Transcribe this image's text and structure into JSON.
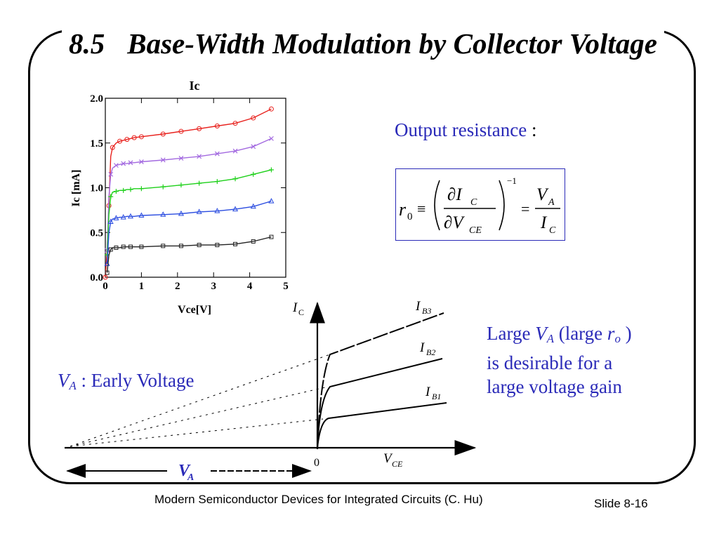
{
  "slide": {
    "number": "8.5",
    "title": "Base-Width Modulation by Collector Voltage",
    "footer": "Modern Semiconductor Devices for Integrated Circuits (C. Hu)",
    "slide_no": "Slide 8-16"
  },
  "output_resistance": {
    "label": "Output resistance",
    "colon": ":",
    "formula": {
      "r": "r",
      "r_sub": "0",
      "equiv": "≡",
      "num": "∂I",
      "num_sub": "C",
      "den": "∂V",
      "den_sub": "CE",
      "exp": "−1",
      "eq": "=",
      "va": "V",
      "va_sub": "A",
      "ic": "I",
      "ic_sub": "C"
    }
  },
  "early": {
    "va": "V",
    "va_sub": "A",
    "text": " : Early Voltage"
  },
  "statement": {
    "l1a": "Large ",
    "va": "V",
    "va_sub": "A",
    "l1b": " (large ",
    "ro": "r",
    "ro_sub": "o",
    "l1c": " )",
    "l2": "is desirable for a",
    "l3": "large voltage gain"
  },
  "sketch": {
    "ic": "I",
    "ic_sub": "C",
    "vce": "V",
    "vce_sub": "CE",
    "zero": "0",
    "va": "V",
    "va_sub": "A",
    "ib": [
      "I",
      "I",
      "I"
    ],
    "ib_sub": [
      "B3",
      "B2",
      "B1"
    ]
  },
  "chart_data": {
    "type": "scatter",
    "title": "Ic",
    "xlabel": "Vce[V]",
    "ylabel": "Ic [mA]",
    "xlim": [
      0,
      5
    ],
    "ylim": [
      0,
      2.0
    ],
    "x_ticks": [
      "0",
      "1",
      "2",
      "3",
      "4",
      "5"
    ],
    "y_ticks": [
      "0.0",
      "0.5",
      "1.0",
      "1.5",
      "2.0"
    ],
    "grid": false,
    "series": [
      {
        "color": "#e8201c",
        "marker": "circle",
        "x": [
          0,
          0.05,
          0.1,
          0.15,
          0.2,
          0.3,
          0.4,
          0.5,
          0.6,
          0.7,
          0.8,
          1.0,
          1.6,
          2.1,
          2.6,
          3.1,
          3.6,
          4.1,
          4.6
        ],
        "y": [
          0,
          0.3,
          0.8,
          1.35,
          1.45,
          1.5,
          1.52,
          1.53,
          1.54,
          1.55,
          1.56,
          1.57,
          1.6,
          1.63,
          1.66,
          1.69,
          1.72,
          1.78,
          1.88
        ]
      },
      {
        "color": "#a36ae0",
        "marker": "x",
        "x": [
          0.05,
          0.1,
          0.15,
          0.2,
          0.3,
          0.4,
          0.5,
          0.6,
          0.7,
          0.8,
          1.0,
          1.6,
          2.1,
          2.6,
          3.1,
          3.6,
          4.1,
          4.6
        ],
        "y": [
          0.3,
          0.9,
          1.15,
          1.22,
          1.25,
          1.26,
          1.27,
          1.27,
          1.28,
          1.28,
          1.29,
          1.31,
          1.33,
          1.35,
          1.38,
          1.41,
          1.46,
          1.55
        ]
      },
      {
        "color": "#1ed01a",
        "marker": "plus",
        "x": [
          0.05,
          0.1,
          0.15,
          0.2,
          0.3,
          0.4,
          0.5,
          0.6,
          0.7,
          0.8,
          1.0,
          1.6,
          2.1,
          2.6,
          3.1,
          3.6,
          4.1,
          4.6
        ],
        "y": [
          0.25,
          0.7,
          0.9,
          0.95,
          0.96,
          0.97,
          0.97,
          0.98,
          0.98,
          0.99,
          0.99,
          1.01,
          1.03,
          1.05,
          1.07,
          1.1,
          1.15,
          1.2
        ]
      },
      {
        "color": "#2a4ce0",
        "marker": "triangle",
        "x": [
          0.05,
          0.1,
          0.15,
          0.2,
          0.3,
          0.4,
          0.5,
          0.6,
          0.7,
          0.8,
          1.0,
          1.6,
          2.1,
          2.6,
          3.1,
          3.6,
          4.1,
          4.6
        ],
        "y": [
          0.15,
          0.5,
          0.62,
          0.65,
          0.66,
          0.67,
          0.67,
          0.68,
          0.68,
          0.68,
          0.69,
          0.7,
          0.71,
          0.73,
          0.74,
          0.76,
          0.79,
          0.85
        ]
      },
      {
        "color": "#222222",
        "marker": "square",
        "x": [
          0.05,
          0.1,
          0.15,
          0.2,
          0.3,
          0.4,
          0.5,
          0.6,
          0.7,
          0.8,
          1.0,
          1.6,
          2.1,
          2.6,
          3.1,
          3.6,
          4.1,
          4.6
        ],
        "y": [
          0.05,
          0.25,
          0.31,
          0.33,
          0.33,
          0.33,
          0.34,
          0.34,
          0.34,
          0.34,
          0.34,
          0.35,
          0.35,
          0.36,
          0.36,
          0.37,
          0.4,
          0.45
        ]
      }
    ]
  }
}
